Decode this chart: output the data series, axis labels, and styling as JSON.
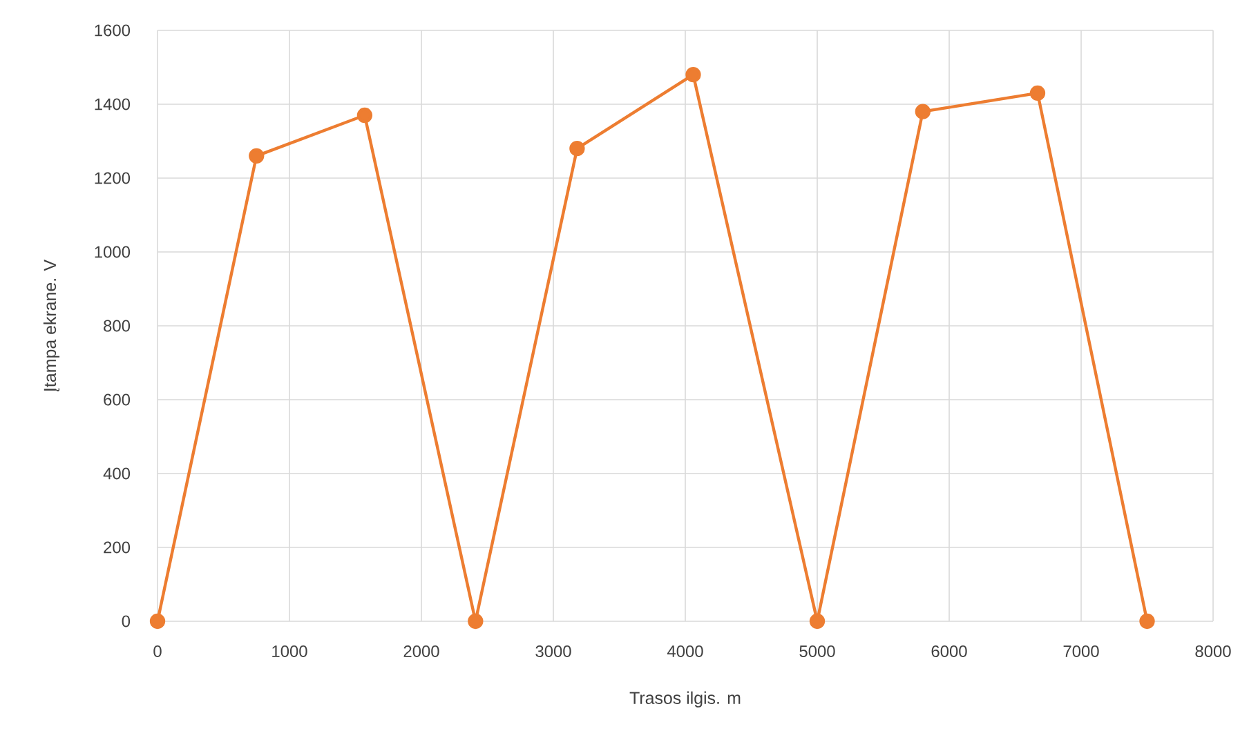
{
  "chart_data": {
    "type": "line",
    "xlabel": "Trasos ilgis. m",
    "ylabel": "Įtampa ekrane. V",
    "x": [
      0,
      750,
      1570,
      2410,
      3180,
      4060,
      5000,
      5800,
      6670,
      7500
    ],
    "series": [
      {
        "color": "#ed7d31",
        "values": [
          0,
          1260,
          1370,
          0,
          1280,
          1480,
          0,
          1380,
          1430,
          0
        ]
      }
    ],
    "xlim": [
      0,
      8000
    ],
    "ylim": [
      0,
      1600
    ],
    "xticks": [
      0,
      1000,
      2000,
      3000,
      4000,
      5000,
      6000,
      7000,
      8000
    ],
    "yticks": [
      0,
      200,
      400,
      600,
      800,
      1000,
      1200,
      1400,
      1600
    ],
    "grid": true,
    "marker": "circle",
    "line_style": "solid"
  }
}
